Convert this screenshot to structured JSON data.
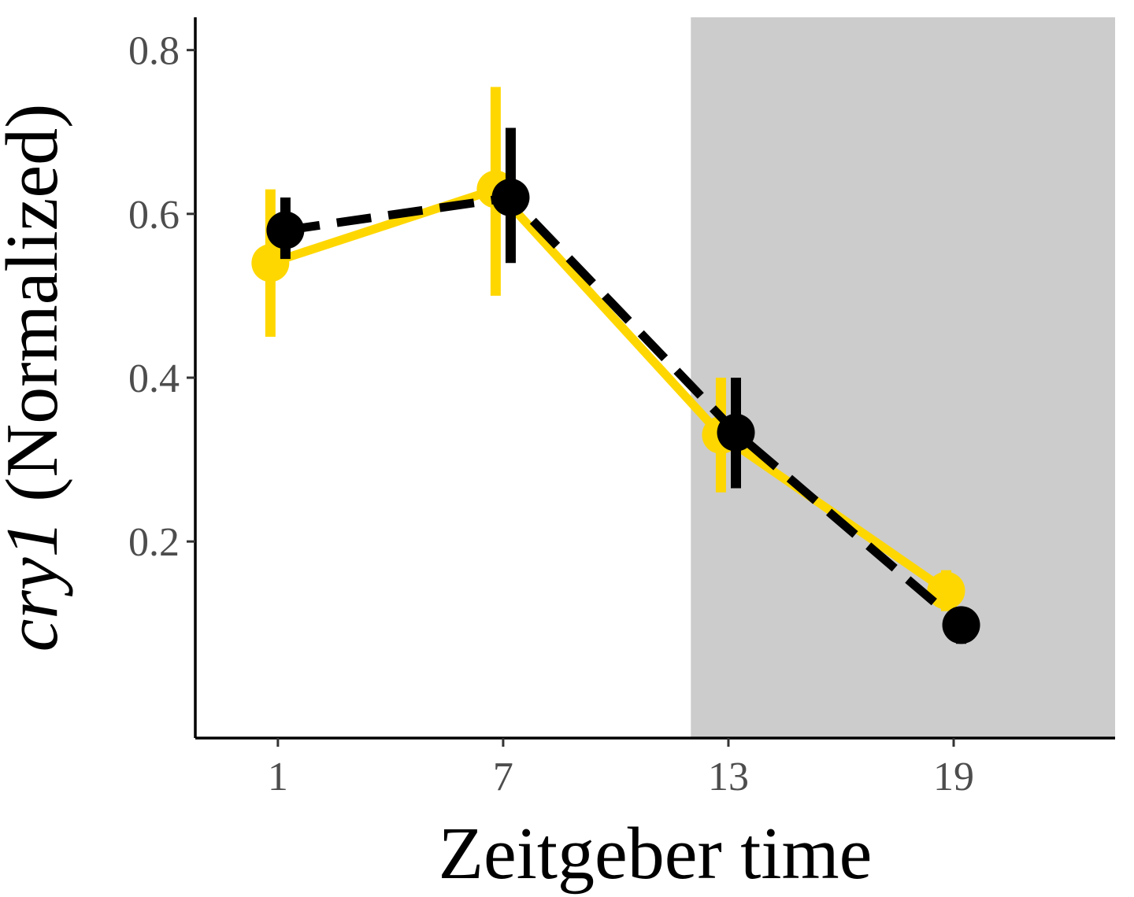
{
  "chart_data": {
    "type": "line",
    "xlabel": "Zeitgeber time",
    "ylabel_gene": "cry1",
    "ylabel_suffix": " (Normalized)",
    "x_ticks": [
      1,
      7,
      13,
      19
    ],
    "y_ticks": [
      0.2,
      0.4,
      0.6,
      0.8
    ],
    "y_tick_labels": [
      "0.2",
      "0.4",
      "0.6",
      "0.8"
    ],
    "x_tick_labels": [
      "1",
      "7",
      "13",
      "19"
    ],
    "xlim": [
      -1.2,
      23.3
    ],
    "ylim": [
      -0.04,
      0.84
    ],
    "grid": false,
    "legend": "none",
    "dark_period": {
      "x_start": 12,
      "x_end": 24,
      "color": "#cccccc"
    },
    "series": [
      {
        "color": "#FFD700",
        "line_style": "solid",
        "x": [
          0.8,
          6.8,
          12.8,
          18.8
        ],
        "values": [
          0.54,
          0.63,
          0.33,
          0.14
        ],
        "error_low": [
          0.45,
          0.5,
          0.26,
          0.115
        ],
        "error_high": [
          0.63,
          0.755,
          0.4,
          0.165
        ]
      },
      {
        "color": "#000000",
        "line_style": "dashed",
        "x": [
          1.2,
          7.2,
          13.2,
          19.2
        ],
        "values": [
          0.58,
          0.62,
          0.333,
          0.098
        ],
        "error_low": [
          0.545,
          0.54,
          0.265,
          0.075
        ],
        "error_high": [
          0.62,
          0.705,
          0.4,
          0.12
        ]
      }
    ]
  }
}
